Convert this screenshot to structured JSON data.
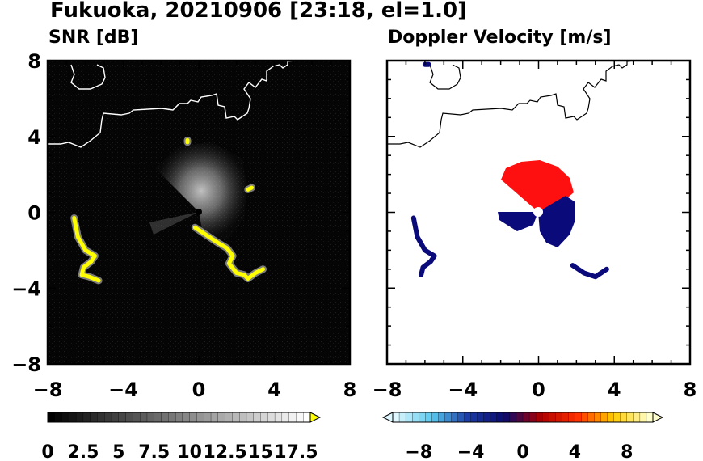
{
  "title": "Fukuoka, 20210906 [23:18, el=1.0]",
  "chart_data": [
    {
      "type": "heatmap",
      "title": "SNR [dB]",
      "xlim": [
        -8,
        8
      ],
      "ylim": [
        -8,
        8
      ],
      "x_ticks": [
        "−8",
        "−4",
        "0",
        "4",
        "8"
      ],
      "y_ticks": [
        "8",
        "4",
        "0",
        "−4",
        "−8"
      ],
      "colorbar": {
        "range": [
          0,
          18.5
        ],
        "labels": [
          "0",
          "2.5",
          "5",
          "7.5",
          "10",
          "12.5",
          "15",
          "17.5"
        ],
        "colors": [
          "#000000",
          "#ffffff",
          "#ffff00"
        ]
      },
      "background_color": "#050505",
      "echo_color": "#ffff00",
      "echoes": [
        {
          "name": "west-band",
          "points": [
            [
              -6.6,
              -0.3
            ],
            [
              -6.4,
              -1.3
            ],
            [
              -6.0,
              -2.0
            ],
            [
              -5.5,
              -2.3
            ],
            [
              -5.7,
              -2.6
            ],
            [
              -6.1,
              -2.9
            ],
            [
              -6.2,
              -3.3
            ],
            [
              -5.8,
              -3.4
            ],
            [
              -5.3,
              -3.6
            ]
          ]
        },
        {
          "name": "southeast-band",
          "points": [
            [
              -0.2,
              -0.8
            ],
            [
              0.4,
              -1.2
            ],
            [
              1.0,
              -1.6
            ],
            [
              1.5,
              -1.9
            ],
            [
              1.8,
              -2.3
            ],
            [
              1.6,
              -2.7
            ],
            [
              2.0,
              -3.2
            ],
            [
              2.4,
              -3.3
            ],
            [
              2.6,
              -3.5
            ],
            [
              3.0,
              -3.2
            ],
            [
              3.4,
              -3.0
            ]
          ]
        },
        {
          "name": "north-dot",
          "points": [
            [
              -0.6,
              3.8
            ],
            [
              -0.6,
              3.7
            ]
          ]
        },
        {
          "name": "northeast-dot",
          "points": [
            [
              2.6,
              1.2
            ],
            [
              2.8,
              1.3
            ]
          ]
        }
      ]
    },
    {
      "type": "heatmap",
      "title": "Doppler Velocity [m/s]",
      "xlim": [
        -8,
        8
      ],
      "ylim": [
        -8,
        8
      ],
      "x_ticks": [
        "−8",
        "−4",
        "0",
        "4",
        "8"
      ],
      "y_ticks": [],
      "colorbar": {
        "range": [
          -10,
          10
        ],
        "labels": [
          "−8",
          "−4",
          "0",
          "4",
          "8"
        ],
        "colors": [
          "#dff8ff",
          "#56c8ee",
          "#1b3aa6",
          "#0a0a6e",
          "#b00000",
          "#ff3000",
          "#ffcc00",
          "#ffffcc"
        ]
      },
      "echo_colors": {
        "approaching": "#0a0a7a",
        "receding": "#ff1010"
      },
      "echoes": [
        {
          "name": "west-band",
          "points": [
            [
              -6.6,
              -0.3
            ],
            [
              -6.4,
              -1.3
            ],
            [
              -6.0,
              -2.0
            ],
            [
              -5.5,
              -2.3
            ],
            [
              -5.7,
              -2.6
            ],
            [
              -6.1,
              -2.9
            ],
            [
              -6.2,
              -3.3
            ]
          ]
        },
        {
          "name": "southeast-band",
          "points": [
            [
              1.8,
              -2.8
            ],
            [
              2.4,
              -3.2
            ],
            [
              3.0,
              -3.4
            ],
            [
              3.6,
              -3.0
            ]
          ]
        },
        {
          "name": "north-dot",
          "points": [
            [
              -6.0,
              7.8
            ],
            [
              -5.8,
              7.8
            ]
          ]
        }
      ]
    }
  ]
}
